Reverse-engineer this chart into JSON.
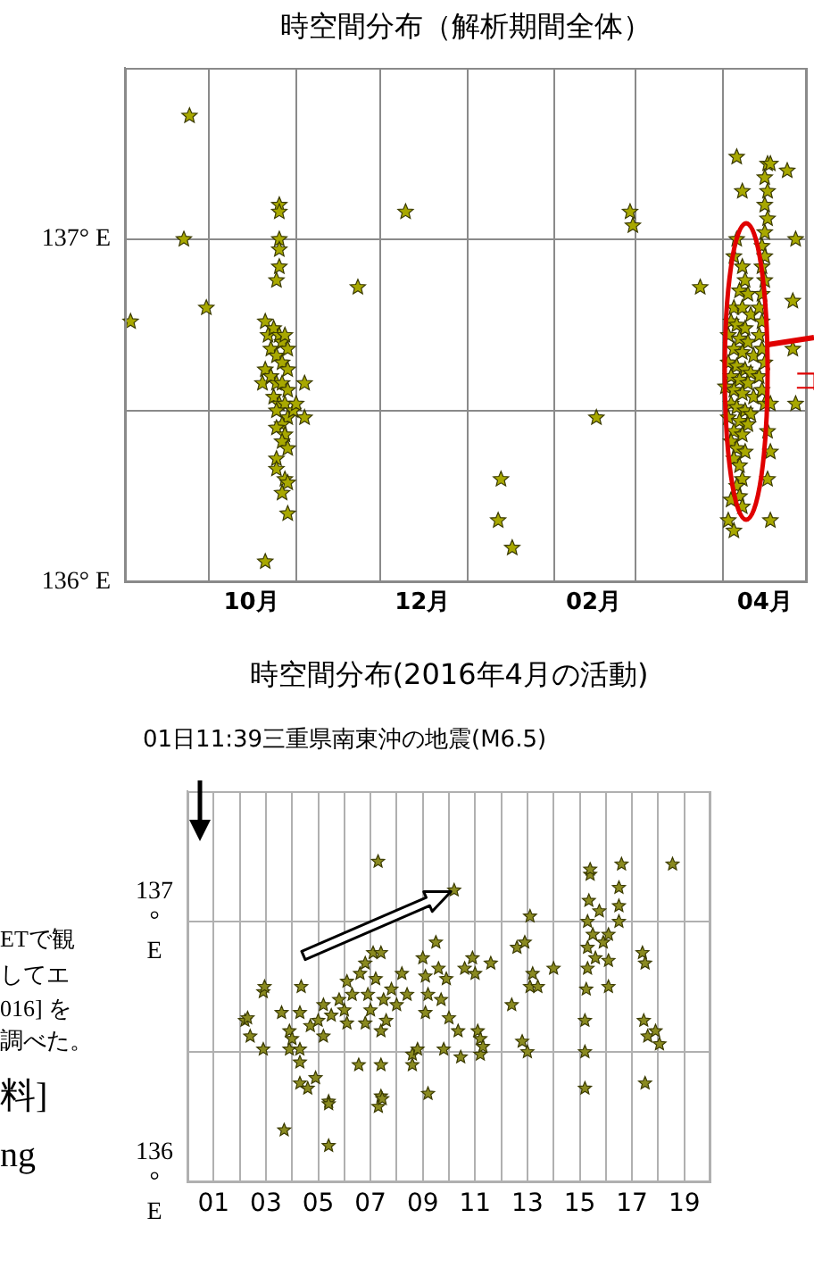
{
  "chart_data": [
    {
      "type": "scatter",
      "title": "時空間分布（解析期間全体）",
      "annotations": [
        "コ"
      ],
      "marker": "star",
      "grid": true,
      "legend": false,
      "color": "#a8a800",
      "xlim": [
        "2015-09-01",
        "2016-05-01"
      ],
      "xticks": [
        {
          "value": "2015-09-01",
          "label": null
        },
        {
          "value": "2015-10-01",
          "label": null
        },
        {
          "value": "2015-10-16",
          "label": "10月"
        },
        {
          "value": "2015-11-01",
          "label": null
        },
        {
          "value": "2015-12-01",
          "label": null
        },
        {
          "value": "2015-12-16",
          "label": "12月"
        },
        {
          "value": "2016-01-01",
          "label": null
        },
        {
          "value": "2016-02-01",
          "label": null
        },
        {
          "value": "2016-02-15",
          "label": "02月"
        },
        {
          "value": "2016-03-01",
          "label": null
        },
        {
          "value": "2016-04-01",
          "label": null
        },
        {
          "value": "2016-04-16",
          "label": "04月"
        },
        {
          "value": "2016-05-01",
          "label": null
        }
      ],
      "ylim": [
        136,
        137.5
      ],
      "yticks": [
        {
          "value": 136,
          "label": "136° E"
        },
        {
          "value": 136.5,
          "label": null
        },
        {
          "value": 137,
          "label": "137° E"
        }
      ],
      "x": [
        "2015-09-03",
        "2015-09-22",
        "2015-09-24",
        "2015-09-30",
        "2015-10-26",
        "2015-10-26",
        "2015-10-26",
        "2015-10-26",
        "2015-10-26",
        "2015-10-25",
        "2015-10-21",
        "2015-10-22",
        "2015-10-24",
        "2015-10-26",
        "2015-10-27",
        "2015-10-28",
        "2015-10-29",
        "2015-10-23",
        "2015-10-25",
        "2015-10-27",
        "2015-10-29",
        "2015-10-21",
        "2015-10-20",
        "2015-10-23",
        "2015-10-25",
        "2015-10-27",
        "2015-10-29",
        "2015-10-24",
        "2015-10-26",
        "2015-10-28",
        "2015-10-25",
        "2015-10-29",
        "2015-10-31",
        "2015-10-27",
        "2015-10-25",
        "2015-10-28",
        "2015-10-27",
        "2015-10-29",
        "2015-10-25",
        "2015-10-25",
        "2015-10-28",
        "2015-10-29",
        "2015-10-27",
        "2015-10-29",
        "2015-10-21",
        "2015-11-04",
        "2015-11-04",
        "2015-11-01",
        "2015-11-23",
        "2015-12-10",
        "2016-01-13",
        "2016-01-12",
        "2016-01-17",
        "2016-02-16",
        "2016-02-28",
        "2016-02-29",
        "2016-03-24",
        "2016-04-06",
        "2016-04-08",
        "2016-04-06",
        "2016-04-05",
        "2016-04-08",
        "2016-04-09",
        "2016-04-07",
        "2016-04-10",
        "2016-04-05",
        "2016-04-08",
        "2016-04-11",
        "2016-04-04",
        "2016-04-06",
        "2016-04-09",
        "2016-04-03",
        "2016-04-07",
        "2016-04-10",
        "2016-04-05",
        "2016-04-08",
        "2016-04-12",
        "2016-04-03",
        "2016-04-06",
        "2016-04-09",
        "2016-04-11",
        "2016-04-04",
        "2016-04-07",
        "2016-04-10",
        "2016-04-02",
        "2016-04-05",
        "2016-04-08",
        "2016-04-12",
        "2016-04-04",
        "2016-04-06",
        "2016-04-09",
        "2016-04-11",
        "2016-04-03",
        "2016-04-07",
        "2016-04-10",
        "2016-04-05",
        "2016-04-08",
        "2016-04-04",
        "2016-04-06",
        "2016-04-09",
        "2016-04-05",
        "2016-04-07",
        "2016-04-08",
        "2016-04-06",
        "2016-04-04",
        "2016-04-07",
        "2016-04-03",
        "2016-04-05",
        "2016-04-08",
        "2016-04-17",
        "2016-04-18",
        "2016-04-16",
        "2016-04-17",
        "2016-04-16",
        "2016-04-17",
        "2016-04-16",
        "2016-04-15",
        "2016-04-16",
        "2016-04-15",
        "2016-04-16",
        "2016-04-15",
        "2016-04-14",
        "2016-04-15",
        "2016-04-14",
        "2016-04-15",
        "2016-04-16",
        "2016-04-14",
        "2016-04-15",
        "2016-04-16",
        "2016-04-18",
        "2016-04-17",
        "2016-04-18",
        "2016-04-17",
        "2016-04-18",
        "2016-04-24",
        "2016-04-27",
        "2016-04-26",
        "2016-04-26",
        "2016-04-27"
      ],
      "values": [
        136.76,
        137.0,
        137.36,
        136.8,
        137.1,
        137.08,
        137.0,
        136.97,
        136.92,
        136.88,
        136.76,
        136.72,
        136.74,
        136.72,
        136.7,
        136.72,
        136.68,
        136.68,
        136.66,
        136.64,
        136.62,
        136.62,
        136.58,
        136.6,
        136.58,
        136.58,
        136.56,
        136.54,
        136.52,
        136.52,
        136.5,
        136.48,
        136.5,
        136.46,
        136.45,
        136.43,
        136.41,
        136.39,
        136.36,
        136.33,
        136.3,
        136.29,
        136.26,
        136.2,
        136.06,
        136.58,
        136.48,
        136.52,
        136.86,
        137.08,
        136.3,
        136.18,
        136.1,
        136.48,
        137.08,
        137.04,
        136.86,
        137.24,
        137.14,
        137.0,
        136.95,
        136.92,
        136.88,
        136.85,
        136.84,
        136.8,
        136.8,
        136.78,
        136.76,
        136.75,
        136.74,
        136.72,
        136.71,
        136.7,
        136.68,
        136.67,
        136.66,
        136.64,
        136.63,
        136.62,
        136.61,
        136.6,
        136.59,
        136.58,
        136.57,
        136.56,
        136.55,
        136.54,
        136.52,
        136.51,
        136.5,
        136.49,
        136.48,
        136.47,
        136.46,
        136.44,
        136.43,
        136.41,
        136.39,
        136.38,
        136.36,
        136.34,
        136.3,
        136.28,
        136.24,
        136.25,
        136.18,
        136.15,
        136.22,
        137.22,
        137.22,
        137.18,
        137.14,
        137.1,
        137.06,
        137.02,
        136.98,
        136.95,
        136.92,
        136.88,
        136.84,
        136.8,
        136.76,
        136.72,
        136.68,
        136.64,
        136.6,
        136.56,
        136.52,
        136.52,
        136.44,
        136.38,
        136.3,
        136.18,
        137.2,
        137.0,
        136.82,
        136.68,
        136.52
      ]
    },
    {
      "type": "scatter",
      "title": "時空間分布(2016年4月の活動)",
      "annotations": [
        "01日11:39三重県南東沖の地震(M6.5)",
        "ETで観",
        "してエ",
        "016] を",
        "調べた。",
        "料]",
        "ng"
      ],
      "marker": "star",
      "grid": true,
      "legend": false,
      "color": "#8a8a20",
      "xlim": [
        0,
        20
      ],
      "xticks": [
        {
          "value": 1,
          "label": "01"
        },
        {
          "value": 2,
          "label": null
        },
        {
          "value": 3,
          "label": "03"
        },
        {
          "value": 4,
          "label": null
        },
        {
          "value": 5,
          "label": "05"
        },
        {
          "value": 6,
          "label": null
        },
        {
          "value": 7,
          "label": "07"
        },
        {
          "value": 8,
          "label": null
        },
        {
          "value": 9,
          "label": "09"
        },
        {
          "value": 10,
          "label": null
        },
        {
          "value": 11,
          "label": "11"
        },
        {
          "value": 12,
          "label": null
        },
        {
          "value": 13,
          "label": "13"
        },
        {
          "value": 14,
          "label": null
        },
        {
          "value": 15,
          "label": "15"
        },
        {
          "value": 16,
          "label": null
        },
        {
          "value": 17,
          "label": "17"
        },
        {
          "value": 18,
          "label": null
        },
        {
          "value": 19,
          "label": "19"
        },
        {
          "value": 20,
          "label": null
        }
      ],
      "ylim": [
        136,
        137.5
      ],
      "yticks": [
        {
          "value": 136,
          "label": "136\n°\nE"
        },
        {
          "value": 136.5,
          "label": null
        },
        {
          "value": 137,
          "label": "137\n°\nE"
        }
      ],
      "x": [
        2.2,
        2.3,
        2.4,
        2.9,
        2.95,
        2.9,
        3.6,
        3.7,
        3.9,
        3.9,
        4.0,
        4.3,
        4.3,
        4.35,
        4.3,
        4.3,
        4.6,
        4.9,
        4.7,
        5.0,
        5.2,
        5.2,
        5.4,
        5.4,
        5.4,
        5.5,
        5.8,
        6.0,
        6.1,
        6.1,
        6.3,
        6.55,
        6.6,
        6.8,
        6.8,
        6.9,
        7.0,
        7.1,
        7.2,
        7.29,
        7.3,
        7.4,
        7.4,
        7.4,
        7.4,
        7.45,
        7.5,
        7.6,
        7.8,
        8.0,
        8.2,
        8.4,
        8.6,
        8.6,
        8.8,
        9.0,
        9.1,
        9.1,
        9.2,
        9.2,
        9.5,
        9.6,
        9.7,
        9.8,
        9.9,
        10.0,
        10.2,
        10.35,
        10.45,
        10.6,
        10.9,
        11.0,
        11.1,
        11.2,
        11.2,
        11.3,
        11.6,
        12.4,
        12.6,
        12.8,
        12.9,
        13.0,
        13.1,
        13.1,
        13.2,
        13.4,
        14.0,
        15.2,
        15.2,
        15.2,
        15.25,
        15.3,
        15.3,
        15.3,
        15.35,
        15.4,
        15.4,
        15.5,
        15.6,
        15.75,
        15.9,
        16.1,
        16.1,
        16.1,
        16.5,
        16.5,
        16.5,
        16.6,
        17.4,
        17.45,
        17.5,
        17.5,
        17.6,
        17.9,
        18.05,
        18.55
      ],
      "values": [
        136.62,
        136.63,
        136.56,
        136.73,
        136.75,
        136.51,
        136.65,
        136.2,
        136.58,
        136.51,
        136.55,
        136.65,
        136.51,
        136.75,
        136.46,
        136.38,
        136.36,
        136.4,
        136.6,
        136.62,
        136.68,
        136.56,
        136.31,
        136.3,
        136.14,
        136.64,
        136.7,
        136.66,
        136.77,
        136.61,
        136.72,
        136.45,
        136.8,
        136.84,
        136.61,
        136.72,
        136.66,
        136.88,
        136.78,
        137.23,
        136.29,
        136.88,
        136.58,
        136.45,
        136.33,
        136.32,
        136.7,
        136.62,
        136.74,
        136.68,
        136.8,
        136.72,
        136.49,
        136.45,
        136.51,
        136.86,
        136.79,
        136.65,
        136.34,
        136.72,
        136.92,
        136.82,
        136.7,
        136.51,
        136.78,
        136.63,
        137.12,
        136.58,
        136.48,
        136.82,
        136.86,
        136.8,
        136.58,
        136.55,
        136.49,
        136.52,
        136.84,
        136.68,
        136.9,
        136.54,
        136.92,
        136.5,
        137.02,
        136.75,
        136.8,
        136.75,
        136.82,
        136.36,
        136.5,
        136.62,
        136.74,
        136.82,
        136.9,
        137.0,
        137.08,
        137.18,
        137.2,
        136.95,
        136.86,
        137.04,
        136.92,
        136.95,
        136.85,
        136.75,
        137.13,
        137.06,
        137.0,
        137.22,
        136.88,
        136.62,
        136.84,
        136.38,
        136.56,
        136.58,
        136.53,
        137.22
      ]
    }
  ]
}
